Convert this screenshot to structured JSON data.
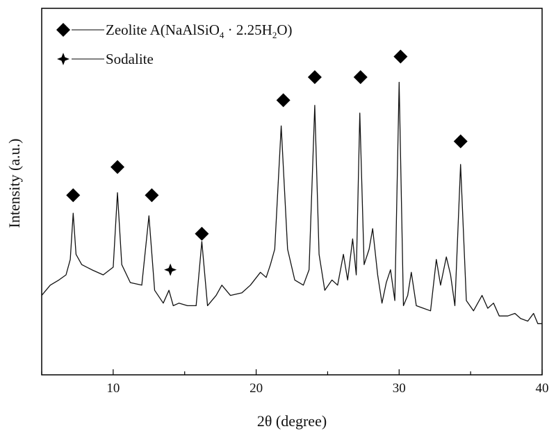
{
  "chart_data": {
    "type": "line",
    "xlabel": "2θ (degree)",
    "ylabel": "Intensity (a.u.)",
    "xlim": [
      5,
      40
    ],
    "ylim": [
      0,
      100
    ],
    "x_ticks": [
      "10",
      "20",
      "30",
      "40"
    ],
    "y_ticks_shown": false,
    "grid": false,
    "legend": {
      "position": "top-left",
      "entries": [
        {
          "marker": "diamond",
          "label_main": "Zeolite A(NaAlSiO",
          "sub1": "4",
          "label_mid": " · 2.25H",
          "sub2": "2",
          "label_end": "O)"
        },
        {
          "marker": "star",
          "label_main": "Sodalite"
        }
      ]
    },
    "series": [
      {
        "x": [
          5.0,
          5.6,
          6.2,
          6.7,
          7.0,
          7.2,
          7.4,
          7.8,
          8.5,
          9.3,
          10.0,
          10.3,
          10.6,
          11.2,
          12.0,
          12.5,
          12.9,
          13.5,
          13.9,
          14.2,
          14.6,
          15.2,
          15.8,
          16.2,
          16.6,
          17.2,
          17.6,
          18.2,
          19.0,
          19.6,
          20.3,
          20.7,
          21.0,
          21.3,
          21.75,
          22.2,
          22.7,
          23.3,
          23.7,
          24.1,
          24.4,
          24.8,
          25.3,
          25.7,
          26.1,
          26.4,
          26.75,
          27.0,
          27.25,
          27.55,
          27.9,
          28.15,
          28.5,
          28.8,
          29.1,
          29.4,
          29.7,
          30.0,
          30.3,
          30.6,
          30.85,
          31.2,
          31.7,
          32.2,
          32.6,
          32.9,
          33.3,
          33.6,
          33.9,
          34.3,
          34.7,
          35.2,
          35.8,
          36.2,
          36.6,
          37.0,
          37.6,
          38.1,
          38.5,
          39.0,
          39.4,
          39.7,
          40.0
        ],
        "y": [
          12,
          16,
          18,
          20,
          26,
          44,
          28,
          24,
          22,
          20,
          23,
          52,
          24,
          17,
          16,
          43,
          14,
          9,
          14,
          8,
          9,
          8,
          8,
          33,
          8,
          12,
          16,
          12,
          13,
          16,
          21,
          19,
          24,
          30,
          78,
          30,
          18,
          16,
          22,
          86,
          28,
          14,
          18,
          16,
          28,
          18,
          34,
          20,
          83,
          24,
          30,
          38,
          20,
          9,
          17,
          22,
          10,
          95,
          8,
          12,
          21,
          8,
          7,
          6,
          26,
          16,
          27,
          20,
          8,
          63,
          10,
          6,
          12,
          7,
          9,
          4,
          4,
          5,
          3,
          2,
          5,
          1,
          1
        ]
      }
    ],
    "markers": [
      {
        "type": "diamond",
        "x": 7.2,
        "y": 51
      },
      {
        "type": "diamond",
        "x": 10.3,
        "y": 62
      },
      {
        "type": "diamond",
        "x": 12.7,
        "y": 51
      },
      {
        "type": "star",
        "x": 14.0,
        "y": 22
      },
      {
        "type": "diamond",
        "x": 16.2,
        "y": 36
      },
      {
        "type": "diamond",
        "x": 21.9,
        "y": 88
      },
      {
        "type": "diamond",
        "x": 24.1,
        "y": 97
      },
      {
        "type": "diamond",
        "x": 27.3,
        "y": 97
      },
      {
        "type": "diamond",
        "x": 30.1,
        "y": 105
      },
      {
        "type": "diamond",
        "x": 34.3,
        "y": 72
      }
    ],
    "colors": {
      "line": "#111111",
      "marker": "#000000",
      "axis": "#000000"
    }
  }
}
